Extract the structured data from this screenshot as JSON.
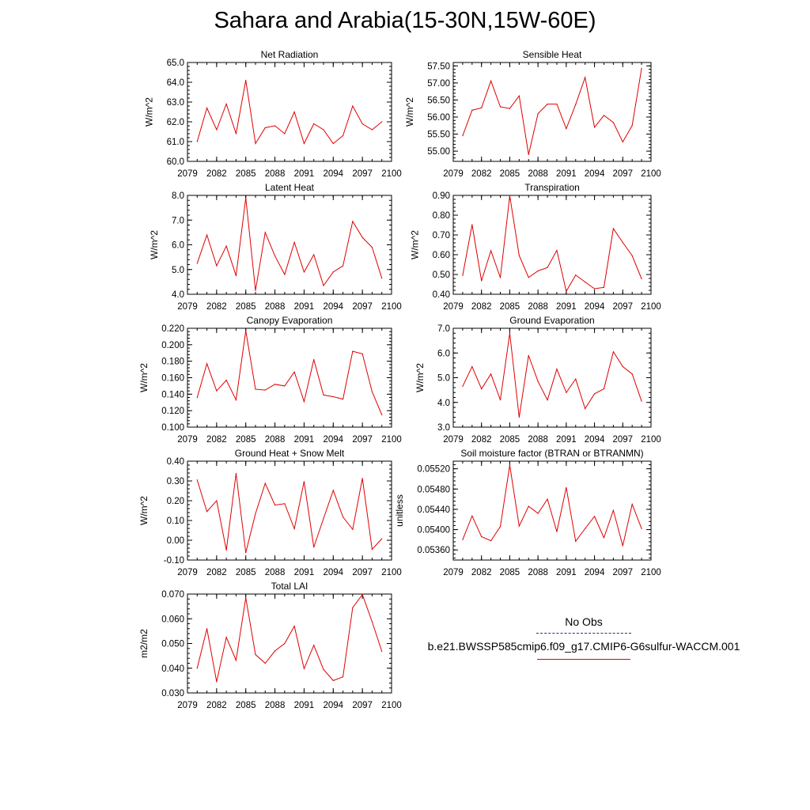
{
  "title": "Sahara and Arabia(15-30N,15W-60E)",
  "legend": {
    "obs_label": "No Obs",
    "model_label": "b.e21.BWSSP585cmip6.f09_g17.CMIP6-G6sulfur-WACCM.001",
    "obs_color": "#303070",
    "model_color": "#e00000"
  },
  "chart_data": [
    {
      "type": "line",
      "title": "Net Radiation",
      "ylabel": "W/m^2",
      "xlim": [
        2079,
        2100
      ],
      "ylim": [
        60.0,
        65.0
      ],
      "x_ticks": [
        2079,
        2082,
        2085,
        2088,
        2091,
        2094,
        2097,
        2100
      ],
      "y_ticks": [
        "60.0",
        "61.0",
        "62.0",
        "63.0",
        "64.0",
        "65.0"
      ],
      "x": [
        2080,
        2081,
        2082,
        2083,
        2084,
        2085,
        2086,
        2087,
        2088,
        2089,
        2090,
        2091,
        2092,
        2093,
        2094,
        2095,
        2096,
        2097,
        2098,
        2099
      ],
      "series": [
        {
          "color": "#e00000",
          "values": [
            61.0,
            62.7,
            61.6,
            62.9,
            61.4,
            64.1,
            60.9,
            61.7,
            61.8,
            61.4,
            62.5,
            60.9,
            61.9,
            61.6,
            60.9,
            61.3,
            62.8,
            61.9,
            61.6,
            62.0
          ]
        }
      ]
    },
    {
      "type": "line",
      "title": "Sensible Heat",
      "ylabel": "W/m^2",
      "xlim": [
        2079,
        2100
      ],
      "ylim": [
        54.7,
        57.6
      ],
      "x_ticks": [
        2079,
        2082,
        2085,
        2088,
        2091,
        2094,
        2097,
        2100
      ],
      "y_ticks": [
        "55.00",
        "55.50",
        "56.00",
        "56.50",
        "57.00",
        "57.50"
      ],
      "x": [
        2080,
        2081,
        2082,
        2083,
        2084,
        2085,
        2086,
        2087,
        2088,
        2089,
        2090,
        2091,
        2092,
        2093,
        2094,
        2095,
        2096,
        2097,
        2098,
        2099
      ],
      "series": [
        {
          "color": "#e00000",
          "values": [
            55.45,
            56.2,
            56.27,
            57.06,
            56.3,
            56.25,
            56.62,
            54.9,
            56.1,
            56.38,
            56.38,
            55.66,
            56.37,
            57.16,
            55.7,
            56.05,
            55.84,
            55.27,
            55.75,
            57.43
          ]
        }
      ]
    },
    {
      "type": "line",
      "title": "Latent Heat",
      "ylabel": "W/m^2",
      "xlim": [
        2079,
        2100
      ],
      "ylim": [
        4.0,
        8.0
      ],
      "x_ticks": [
        2079,
        2082,
        2085,
        2088,
        2091,
        2094,
        2097,
        2100
      ],
      "y_ticks": [
        "4.0",
        "5.0",
        "6.0",
        "7.0",
        "8.0"
      ],
      "x": [
        2080,
        2081,
        2082,
        2083,
        2084,
        2085,
        2086,
        2087,
        2088,
        2089,
        2090,
        2091,
        2092,
        2093,
        2094,
        2095,
        2096,
        2097,
        2098,
        2099
      ],
      "series": [
        {
          "color": "#e00000",
          "values": [
            5.25,
            6.4,
            5.15,
            5.95,
            4.75,
            7.9,
            4.15,
            6.5,
            5.55,
            4.8,
            6.1,
            4.9,
            5.6,
            4.35,
            4.9,
            5.15,
            6.95,
            6.3,
            5.9,
            4.65
          ]
        }
      ]
    },
    {
      "type": "line",
      "title": "Transpiration",
      "ylabel": "W/m^2",
      "xlim": [
        2079,
        2100
      ],
      "ylim": [
        0.4,
        0.9
      ],
      "x_ticks": [
        2079,
        2082,
        2085,
        2088,
        2091,
        2094,
        2097,
        2100
      ],
      "y_ticks": [
        "0.40",
        "0.50",
        "0.60",
        "0.70",
        "0.80",
        "0.90"
      ],
      "x": [
        2080,
        2081,
        2082,
        2083,
        2084,
        2085,
        2086,
        2087,
        2088,
        2089,
        2090,
        2091,
        2092,
        2093,
        2094,
        2095,
        2096,
        2097,
        2098,
        2099
      ],
      "series": [
        {
          "color": "#e00000",
          "values": [
            0.495,
            0.752,
            0.468,
            0.62,
            0.484,
            0.898,
            0.596,
            0.485,
            0.518,
            0.535,
            0.622,
            0.415,
            0.497,
            0.462,
            0.428,
            0.435,
            0.732,
            0.662,
            0.595,
            0.478
          ]
        }
      ]
    },
    {
      "type": "line",
      "title": "Canopy Evaporation",
      "ylabel": "W/m^2",
      "xlim": [
        2079,
        2100
      ],
      "ylim": [
        0.1,
        0.22
      ],
      "x_ticks": [
        2079,
        2082,
        2085,
        2088,
        2091,
        2094,
        2097,
        2100
      ],
      "y_ticks": [
        "0.100",
        "0.120",
        "0.140",
        "0.160",
        "0.180",
        "0.200",
        "0.220"
      ],
      "x": [
        2080,
        2081,
        2082,
        2083,
        2084,
        2085,
        2086,
        2087,
        2088,
        2089,
        2090,
        2091,
        2092,
        2093,
        2094,
        2095,
        2096,
        2097,
        2098,
        2099
      ],
      "series": [
        {
          "color": "#e00000",
          "values": [
            0.136,
            0.177,
            0.144,
            0.157,
            0.133,
            0.217,
            0.146,
            0.145,
            0.152,
            0.15,
            0.167,
            0.131,
            0.182,
            0.139,
            0.137,
            0.134,
            0.192,
            0.189,
            0.143,
            0.115
          ]
        }
      ]
    },
    {
      "type": "line",
      "title": "Ground Evaporation",
      "ylabel": "W/m^2",
      "xlim": [
        2079,
        2100
      ],
      "ylim": [
        3.0,
        7.0
      ],
      "x_ticks": [
        2079,
        2082,
        2085,
        2088,
        2091,
        2094,
        2097,
        2100
      ],
      "y_ticks": [
        "3.0",
        "4.0",
        "5.0",
        "6.0",
        "7.0"
      ],
      "x": [
        2080,
        2081,
        2082,
        2083,
        2084,
        2085,
        2086,
        2087,
        2088,
        2089,
        2090,
        2091,
        2092,
        2093,
        2094,
        2095,
        2096,
        2097,
        2098,
        2099
      ],
      "series": [
        {
          "color": "#e00000",
          "values": [
            4.65,
            5.45,
            4.55,
            5.15,
            4.1,
            6.8,
            3.4,
            5.9,
            4.85,
            4.1,
            5.35,
            4.4,
            4.95,
            3.75,
            4.35,
            4.55,
            6.05,
            5.45,
            5.15,
            4.05
          ]
        }
      ]
    },
    {
      "type": "line",
      "title": "Ground Heat + Snow Melt",
      "ylabel": "W/m^2",
      "xlim": [
        2079,
        2100
      ],
      "ylim": [
        -0.1,
        0.4
      ],
      "x_ticks": [
        2079,
        2082,
        2085,
        2088,
        2091,
        2094,
        2097,
        2100
      ],
      "y_ticks": [
        "-0.10",
        "0.00",
        "0.10",
        "0.20",
        "0.30",
        "0.40"
      ],
      "x": [
        2080,
        2081,
        2082,
        2083,
        2084,
        2085,
        2086,
        2087,
        2088,
        2089,
        2090,
        2091,
        2092,
        2093,
        2094,
        2095,
        2096,
        2097,
        2098,
        2099
      ],
      "series": [
        {
          "color": "#e00000",
          "values": [
            0.305,
            0.145,
            0.2,
            -0.05,
            0.338,
            -0.063,
            0.135,
            0.288,
            0.178,
            0.185,
            0.058,
            0.297,
            -0.035,
            0.11,
            0.252,
            0.118,
            0.055,
            0.313,
            -0.046,
            0.008
          ]
        }
      ]
    },
    {
      "type": "line",
      "title": "Soil moisture factor (BTRAN or BTRANMN)",
      "ylabel": "unitless",
      "xlim": [
        2079,
        2100
      ],
      "ylim": [
        0.0534,
        0.05535
      ],
      "x_ticks": [
        2079,
        2082,
        2085,
        2088,
        2091,
        2094,
        2097,
        2100
      ],
      "y_ticks": [
        "0.05360",
        "0.05400",
        "0.05440",
        "0.05480",
        "0.05520"
      ],
      "x": [
        2080,
        2081,
        2082,
        2083,
        2084,
        2085,
        2086,
        2087,
        2088,
        2089,
        2090,
        2091,
        2092,
        2093,
        2094,
        2095,
        2096,
        2097,
        2098,
        2099
      ],
      "series": [
        {
          "color": "#e00000",
          "values": [
            0.0538,
            0.05427,
            0.05386,
            0.05378,
            0.05406,
            0.05527,
            0.05407,
            0.05446,
            0.05432,
            0.0546,
            0.05396,
            0.05483,
            0.05377,
            0.05402,
            0.05426,
            0.05384,
            0.05438,
            0.05368,
            0.0545,
            0.05402
          ]
        }
      ]
    },
    {
      "type": "line",
      "title": "Total LAI",
      "ylabel": "m2/m2",
      "xlim": [
        2079,
        2100
      ],
      "ylim": [
        0.03,
        0.07
      ],
      "x_ticks": [
        2079,
        2082,
        2085,
        2088,
        2091,
        2094,
        2097,
        2100
      ],
      "y_ticks": [
        "0.030",
        "0.040",
        "0.050",
        "0.060",
        "0.070"
      ],
      "x": [
        2080,
        2081,
        2082,
        2083,
        2084,
        2085,
        2086,
        2087,
        2088,
        2089,
        2090,
        2091,
        2092,
        2093,
        2094,
        2095,
        2096,
        2097,
        2098,
        2099
      ],
      "series": [
        {
          "color": "#e00000",
          "values": [
            0.04,
            0.056,
            0.0345,
            0.0525,
            0.0432,
            0.0685,
            0.0455,
            0.042,
            0.047,
            0.05,
            0.057,
            0.0398,
            0.0493,
            0.0395,
            0.035,
            0.0365,
            0.0645,
            0.0698,
            0.0588,
            0.0468
          ]
        }
      ]
    }
  ]
}
